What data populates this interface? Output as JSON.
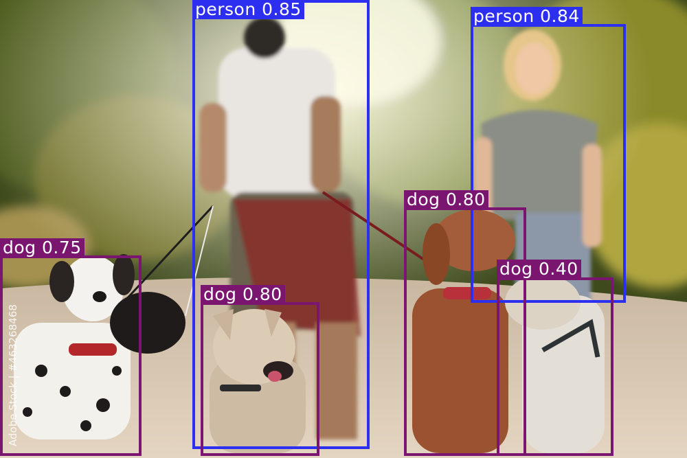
{
  "image": {
    "watermark": "Adobe Stock | #463268468"
  },
  "detections": [
    {
      "label": "person",
      "score": "0.85",
      "color": "#2d2ff0"
    },
    {
      "label": "person",
      "score": "0.84",
      "color": "#2d2ff0"
    },
    {
      "label": "dog",
      "score": "0.80",
      "color": "#7a1670"
    },
    {
      "label": "dog",
      "score": "0.80",
      "color": "#7a1670"
    },
    {
      "label": "dog",
      "score": "0.75",
      "color": "#7a1670"
    },
    {
      "label": "dog",
      "score": "0.40",
      "color": "#7a1670"
    }
  ]
}
